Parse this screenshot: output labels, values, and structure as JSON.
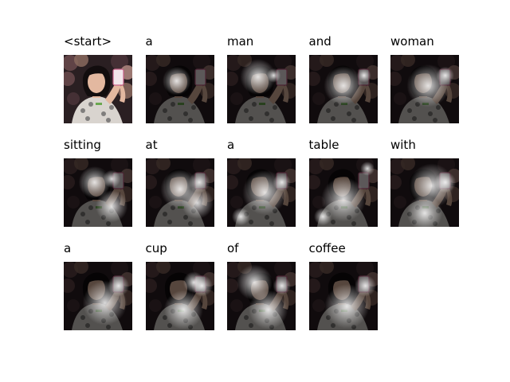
{
  "words": [
    "<start>",
    "a",
    "man",
    "and",
    "woman",
    "sitting",
    "at",
    "a",
    "table",
    "with",
    "a",
    "cup",
    "of",
    "coffee"
  ],
  "photo": {
    "background_color": "#2a1f22",
    "skin_color": "#e3b8a0",
    "hair_color": "#120d0e",
    "shirt_color": "#d9d4cf",
    "phone_color": "#f2e6ea",
    "crowd_colors": [
      "#6a4a4c",
      "#8a6a5e",
      "#4a3438",
      "#b08880"
    ]
  },
  "attention_spots": [
    null,
    [
      [
        0.45,
        0.38,
        0.16
      ]
    ],
    [
      [
        0.45,
        0.32,
        0.2
      ],
      [
        0.68,
        0.3,
        0.08
      ]
    ],
    [
      [
        0.5,
        0.45,
        0.22
      ],
      [
        0.8,
        0.3,
        0.08
      ]
    ],
    [
      [
        0.55,
        0.45,
        0.24
      ],
      [
        0.8,
        0.3,
        0.1
      ]
    ],
    [
      [
        0.45,
        0.35,
        0.18
      ],
      [
        0.7,
        0.3,
        0.1
      ],
      [
        0.7,
        0.7,
        0.18
      ]
    ],
    [
      [
        0.5,
        0.45,
        0.22
      ],
      [
        0.78,
        0.35,
        0.12
      ],
      [
        0.75,
        0.65,
        0.18
      ]
    ],
    [
      [
        0.55,
        0.5,
        0.25
      ],
      [
        0.2,
        0.85,
        0.1
      ],
      [
        0.8,
        0.35,
        0.1
      ]
    ],
    [
      [
        0.85,
        0.15,
        0.08
      ],
      [
        0.5,
        0.6,
        0.25
      ],
      [
        0.2,
        0.85,
        0.1
      ]
    ],
    [
      [
        0.6,
        0.4,
        0.25
      ],
      [
        0.8,
        0.35,
        0.12
      ],
      [
        0.5,
        0.8,
        0.2
      ]
    ],
    [
      [
        0.8,
        0.35,
        0.12
      ],
      [
        0.6,
        0.6,
        0.25
      ]
    ],
    [
      [
        0.82,
        0.35,
        0.12
      ],
      [
        0.7,
        0.3,
        0.12
      ],
      [
        0.55,
        0.7,
        0.22
      ]
    ],
    [
      [
        0.4,
        0.3,
        0.2
      ],
      [
        0.8,
        0.35,
        0.1
      ],
      [
        0.6,
        0.7,
        0.22
      ]
    ],
    [
      [
        0.82,
        0.35,
        0.12
      ],
      [
        0.55,
        0.65,
        0.25
      ]
    ]
  ]
}
